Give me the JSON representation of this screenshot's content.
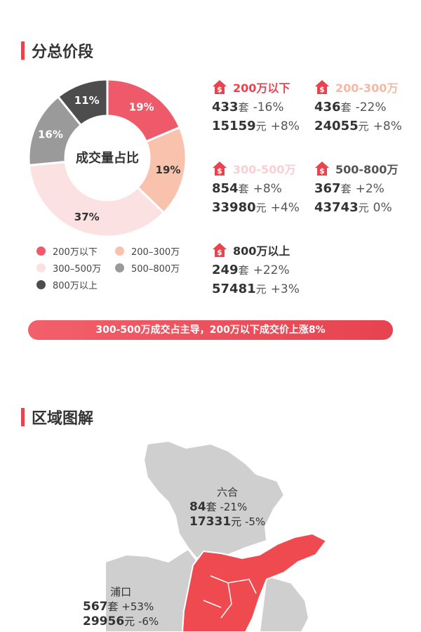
{
  "section1_title": "分总价段",
  "section2_title": "区域图解",
  "chart_data": {
    "type": "pie",
    "center_label": "成交量占比",
    "categories": [
      "200万以下",
      "200-300万",
      "300-500万",
      "500-800万",
      "800万以上"
    ],
    "values": [
      19,
      19,
      37,
      16,
      11
    ],
    "labels": [
      "19%",
      "19%",
      "37%",
      "16%",
      "11%"
    ],
    "colors": [
      "#ef5a6a",
      "#f8c2ad",
      "#fce1e3",
      "#9a9a9a",
      "#4d4d4d"
    ]
  },
  "legend": [
    "200万以下",
    "200–300万",
    "300–500万",
    "500–800万",
    "800万以上"
  ],
  "stats": [
    {
      "label": "200万以下",
      "color": "#e8434f",
      "units": "433",
      "units_unit": "套",
      "units_change": "-16%",
      "price": "15159",
      "price_unit": "元",
      "price_change": "+8%"
    },
    {
      "label": "200-300万",
      "color": "#f7b7a3",
      "units": "436",
      "units_unit": "套",
      "units_change": "-22%",
      "price": "24055",
      "price_unit": "元",
      "price_change": "+8%"
    },
    {
      "label": "300-500万",
      "color": "#f9cfd3",
      "units": "854",
      "units_unit": "套",
      "units_change": "+8%",
      "price": "33980",
      "price_unit": "元",
      "price_change": "+4%"
    },
    {
      "label": "500-800万",
      "color": "#555555",
      "units": "367",
      "units_unit": "套",
      "units_change": "+2%",
      "price": "43743",
      "price_unit": "元",
      "price_change": "0%"
    },
    {
      "label": "800万以上",
      "color": "#333333",
      "units": "249",
      "units_unit": "套",
      "units_change": "+22%",
      "price": "57481",
      "price_unit": "元",
      "price_change": "+3%"
    }
  ],
  "banner": "300-500万成交占主导，200万以下成交价上涨8%",
  "districts": [
    {
      "name": "六合",
      "units": "84",
      "units_unit": "套",
      "units_change": "-21%",
      "price": "17331",
      "price_unit": "元",
      "price_change": "-5%"
    },
    {
      "name": "浦口",
      "units": "567",
      "units_unit": "套",
      "units_change": "+53%",
      "price": "29956",
      "price_unit": "元",
      "price_change": "-6%"
    }
  ],
  "colors": {
    "accent": "#e8434f",
    "map_gray": "#cfcfcf",
    "map_red": "#ef4a50"
  }
}
